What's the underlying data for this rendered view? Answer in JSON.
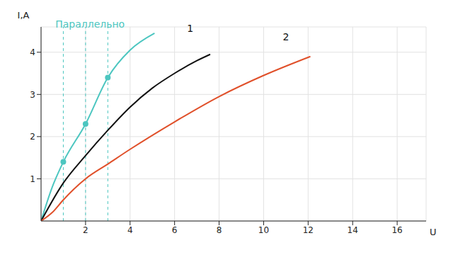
{
  "chart_data": {
    "type": "line",
    "x_label": "U",
    "y_label": "I,A",
    "xlim": [
      0,
      17.3
    ],
    "ylim": [
      0,
      4.6
    ],
    "xticks": [
      2,
      4,
      6,
      8,
      10,
      12,
      14,
      16
    ],
    "yticks": [
      1,
      2,
      3,
      4
    ],
    "grid": true,
    "vlines": [
      1,
      2,
      3
    ],
    "series": [
      {
        "color": "#4cc6c0",
        "x": [
          0,
          0.5,
          1,
          2,
          3,
          4,
          5.1
        ],
        "values": [
          0,
          0.8,
          1.4,
          2.3,
          3.4,
          4.05,
          4.45
        ],
        "marker": "circle"
      },
      {
        "color": "#111111",
        "x": [
          0,
          1,
          2,
          3,
          4,
          5,
          6,
          7,
          7.6
        ],
        "values": [
          0,
          0.9,
          1.55,
          2.15,
          2.7,
          3.15,
          3.5,
          3.8,
          3.95
        ]
      },
      {
        "color": "#e0502a",
        "x": [
          0,
          0.5,
          1,
          2,
          3,
          4,
          6,
          8,
          10,
          12.1
        ],
        "values": [
          0,
          0.2,
          0.5,
          1.0,
          1.35,
          1.7,
          2.35,
          2.95,
          3.45,
          3.9
        ]
      }
    ],
    "annotations": [
      {
        "text": "Параллельно",
        "x": 2.2,
        "y": 4.5,
        "color": "#4cc6c0"
      },
      {
        "text": "1",
        "x": 6.7,
        "y": 4.4,
        "color": "#111111"
      },
      {
        "text": "2",
        "x": 11,
        "y": 4.2,
        "color": "#111111"
      }
    ]
  }
}
